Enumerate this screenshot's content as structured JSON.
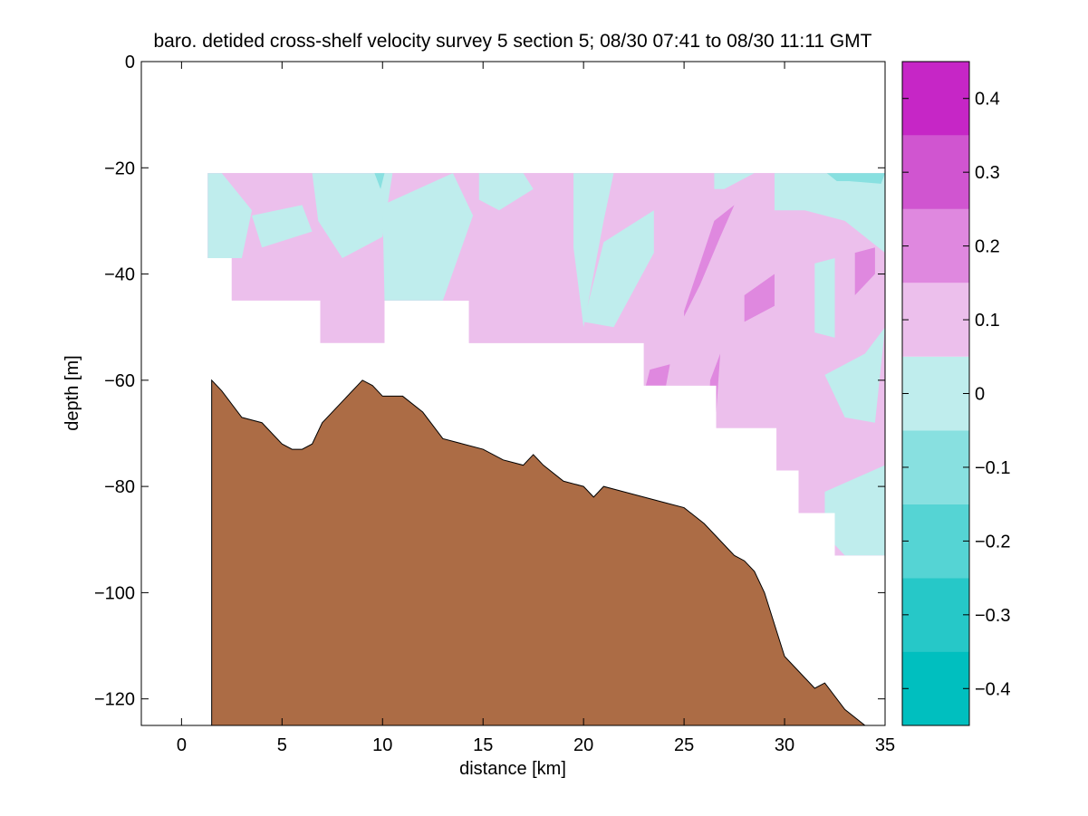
{
  "chart_data": [
    {
      "type": "heatmap",
      "title": "baro. detided cross-shelf velocity survey 5 section 5; 08/30 07:41 to 08/30 11:11 GMT",
      "xlabel": "distance [km]",
      "ylabel": "depth [m]",
      "xlim": [
        -2,
        35
      ],
      "ylim": [
        -125,
        0
      ],
      "xticks": [
        0,
        5,
        10,
        15,
        20,
        25,
        30,
        35
      ],
      "yticks": [
        -120,
        -100,
        -80,
        -60,
        -40,
        -20,
        0
      ],
      "grid": false,
      "contour_levels": [
        -0.45,
        -0.35,
        -0.25,
        -0.15,
        -0.05,
        0.05,
        0.15,
        0.25,
        0.35,
        0.45
      ],
      "level_colors": [
        "#00bfbf",
        "#26c8c8",
        "#55d4d4",
        "#88e0e0",
        "#bfeded",
        "#ecbfec",
        "#df88df",
        "#d055d0",
        "#c626c6",
        "#bf00bf"
      ],
      "data_coverage": {
        "top_depth": -21,
        "bottom_profile": {
          "x": [
            1.3,
            2.5,
            6.9,
            10.1,
            14.3,
            23.0,
            26.6,
            29.6,
            30.7,
            32.5,
            35.0
          ],
          "y": [
            -37,
            -45,
            -53,
            -45,
            -53,
            -61,
            -69,
            -77,
            -85,
            -93,
            -93
          ]
        }
      },
      "patches": [
        {
          "level": 0.1,
          "polygon": {
            "x": [
              9.5,
              14,
              18,
              22,
              26,
              29.5,
              32,
              35,
              35,
              32,
              28,
              23,
              18,
              14,
              10
            ],
            "y": [
              -21,
              -21,
              -21,
              -21,
              -21,
              -21,
              -21,
              -21,
              -93,
              -93,
              -85,
              -69,
              -61,
              -53,
              -45
            ]
          }
        },
        {
          "level": 0.1,
          "polygon": {
            "x": [
              1.3,
              9.5,
              8,
              6,
              3,
              2.5,
              1.3
            ],
            "y": [
              -21,
              -21,
              -25,
              -27,
              -28,
              -45,
              -37
            ]
          }
        },
        {
          "level": 0.0,
          "polygon": {
            "x": [
              1.3,
              2,
              3.5,
              3,
              1.3
            ],
            "y": [
              -21,
              -21,
              -28,
              -37,
              -37
            ]
          }
        },
        {
          "level": 0.0,
          "polygon": {
            "x": [
              3.5,
              6,
              6.5,
              4,
              3.5
            ],
            "y": [
              -29,
              -27,
              -32,
              -35,
              -29
            ]
          }
        },
        {
          "level": 0.0,
          "polygon": {
            "x": [
              6.5,
              10.5,
              10,
              8,
              6.8
            ],
            "y": [
              -21,
              -21,
              -33,
              -37,
              -30
            ]
          }
        },
        {
          "level": 0.0,
          "polygon": {
            "x": [
              10,
              13.5,
              14.5,
              13,
              10.1
            ],
            "y": [
              -27,
              -21,
              -29,
              -45,
              -45
            ]
          }
        },
        {
          "level": 0.0,
          "polygon": {
            "x": [
              14.8,
              17,
              17.5,
              15.8,
              14.8
            ],
            "y": [
              -21,
              -21,
              -24,
              -28,
              -26
            ]
          }
        },
        {
          "level": 0.0,
          "polygon": {
            "x": [
              19.5,
              21.5,
              21,
              20,
              19.5
            ],
            "y": [
              -21,
              -21,
              -30,
              -50,
              -35
            ]
          }
        },
        {
          "level": 0.0,
          "polygon": {
            "x": [
              21,
              23.5,
              23.5,
              21.5,
              20
            ],
            "y": [
              -34,
              -28,
              -36,
              -50,
              -49
            ]
          }
        },
        {
          "level": 0.0,
          "polygon": {
            "x": [
              26.5,
              28.5,
              27,
              26.5
            ],
            "y": [
              -21,
              -21,
              -24,
              -24
            ]
          }
        },
        {
          "level": 0.0,
          "polygon": {
            "x": [
              29.5,
              35,
              35,
              33,
              31,
              29.5
            ],
            "y": [
              -21,
              -21,
              -36,
              -30,
              -28,
              -28
            ]
          }
        },
        {
          "level": 0.0,
          "polygon": {
            "x": [
              31.5,
              32.5,
              32.5,
              31.5
            ],
            "y": [
              -38,
              -37,
              -52,
              -51
            ]
          }
        },
        {
          "level": 0.0,
          "polygon": {
            "x": [
              32,
              34,
              35,
              34.5,
              33
            ],
            "y": [
              -59,
              -55,
              -50,
              -68,
              -67
            ]
          }
        },
        {
          "level": 0.0,
          "polygon": {
            "x": [
              32,
              35,
              35,
              33,
              32
            ],
            "y": [
              -81,
              -76,
              -93,
              -93,
              -89
            ]
          }
        },
        {
          "level": 0.2,
          "polygon": {
            "x": [
              25,
              26.5,
              27.5,
              26.8,
              25.8,
              25
            ],
            "y": [
              -47,
              -30,
              -27,
              -33,
              -42,
              -48
            ]
          }
        },
        {
          "level": 0.2,
          "polygon": {
            "x": [
              28,
              29.5,
              29.5,
              28
            ],
            "y": [
              -44,
              -40,
              -46,
              -49
            ]
          }
        },
        {
          "level": 0.2,
          "polygon": {
            "x": [
              33.5,
              34.5,
              34.5,
              33.5
            ],
            "y": [
              -36,
              -35,
              -40,
              -44
            ]
          }
        },
        {
          "level": 0.2,
          "polygon": {
            "x": [
              23.3,
              24.3,
              24.1,
              23.1
            ],
            "y": [
              -58,
              -57,
              -61,
              -61
            ]
          }
        },
        {
          "level": 0.2,
          "polygon": {
            "x": [
              26.3,
              26.8,
              26.6,
              26.2
            ],
            "y": [
              -60,
              -55,
              -66,
              -68
            ]
          }
        },
        {
          "level": -0.1,
          "polygon": {
            "x": [
              9.6,
              10.1,
              9.9
            ],
            "y": [
              -21,
              -21,
              -24
            ]
          }
        },
        {
          "level": -0.1,
          "polygon": {
            "x": [
              32.1,
              35,
              34.8,
              33.2,
              32.6
            ],
            "y": [
              -21,
              -21,
              -23,
              -22.5,
              -22.5
            ]
          }
        }
      ],
      "bathymetry": {
        "color": "#ac6c45",
        "x": [
          1.5,
          2,
          3,
          4,
          5,
          5.5,
          6,
          6.5,
          7,
          8,
          9,
          9.5,
          10,
          11,
          12,
          13,
          14,
          15,
          16,
          17,
          17.5,
          18,
          19,
          20,
          20.5,
          21,
          22,
          23,
          24,
          25,
          26,
          27,
          27.5,
          28,
          28.5,
          29,
          30,
          30.5,
          31,
          31.5,
          32,
          33,
          34
        ],
        "y": [
          -60,
          -62,
          -67,
          -68,
          -72,
          -73,
          -73,
          -72,
          -68,
          -64,
          -60,
          -61,
          -63,
          -63,
          -66,
          -71,
          -72,
          -73,
          -75,
          -76,
          -74,
          -76,
          -79,
          -80,
          -82,
          -80,
          -81,
          -82,
          -83,
          -84,
          -87,
          -91,
          -93,
          -94,
          -96,
          -100,
          -112,
          -114,
          -116,
          -118,
          -117,
          -122,
          -125
        ]
      },
      "colorbar": {
        "ticks": [
          -0.4,
          -0.3,
          -0.2,
          -0.1,
          0,
          0.1,
          0.2,
          0.3,
          0.4
        ],
        "tick_labels": [
          "−0.4",
          "−0.3",
          "−0.2",
          "−0.1",
          "0",
          "0.1",
          "0.2",
          "0.3",
          "0.4"
        ],
        "range": [
          -0.45,
          0.45
        ]
      }
    }
  ]
}
